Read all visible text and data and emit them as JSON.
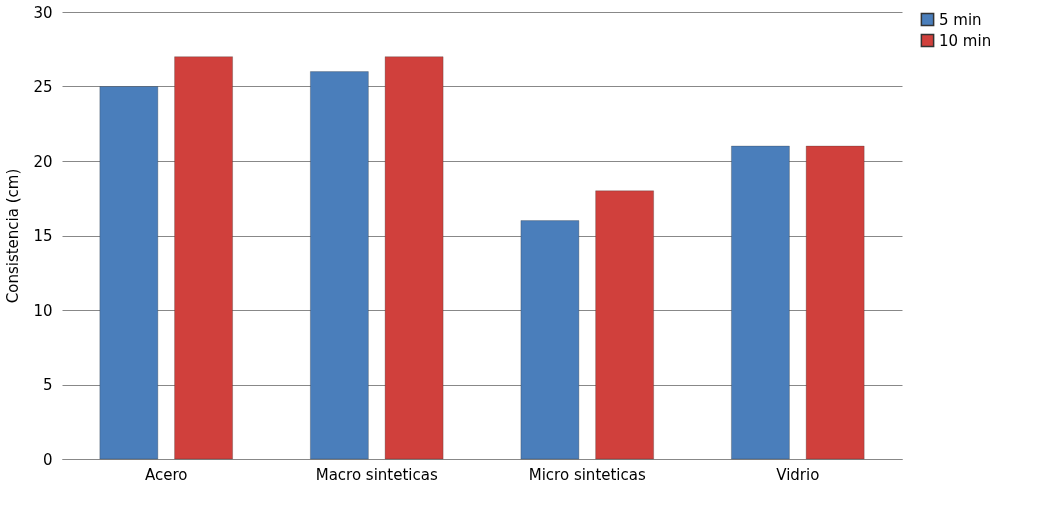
{
  "chart_data": {
    "type": "bar",
    "ylabel": "Consistencia (cm)",
    "categories": [
      "Acero",
      "Macro sinteticas",
      "Micro sinteticas",
      "Vidrio"
    ],
    "series": [
      {
        "name": "5 min",
        "color": "#4a7ebb",
        "values": [
          25,
          26,
          16,
          21
        ]
      },
      {
        "name": "10 min",
        "color": "#d0403c",
        "values": [
          27,
          27,
          18,
          21
        ]
      }
    ],
    "ylim": [
      0,
      30
    ],
    "yticks": [
      0,
      5,
      10,
      15,
      20,
      25,
      30
    ],
    "grid": "y",
    "legend": "right"
  }
}
